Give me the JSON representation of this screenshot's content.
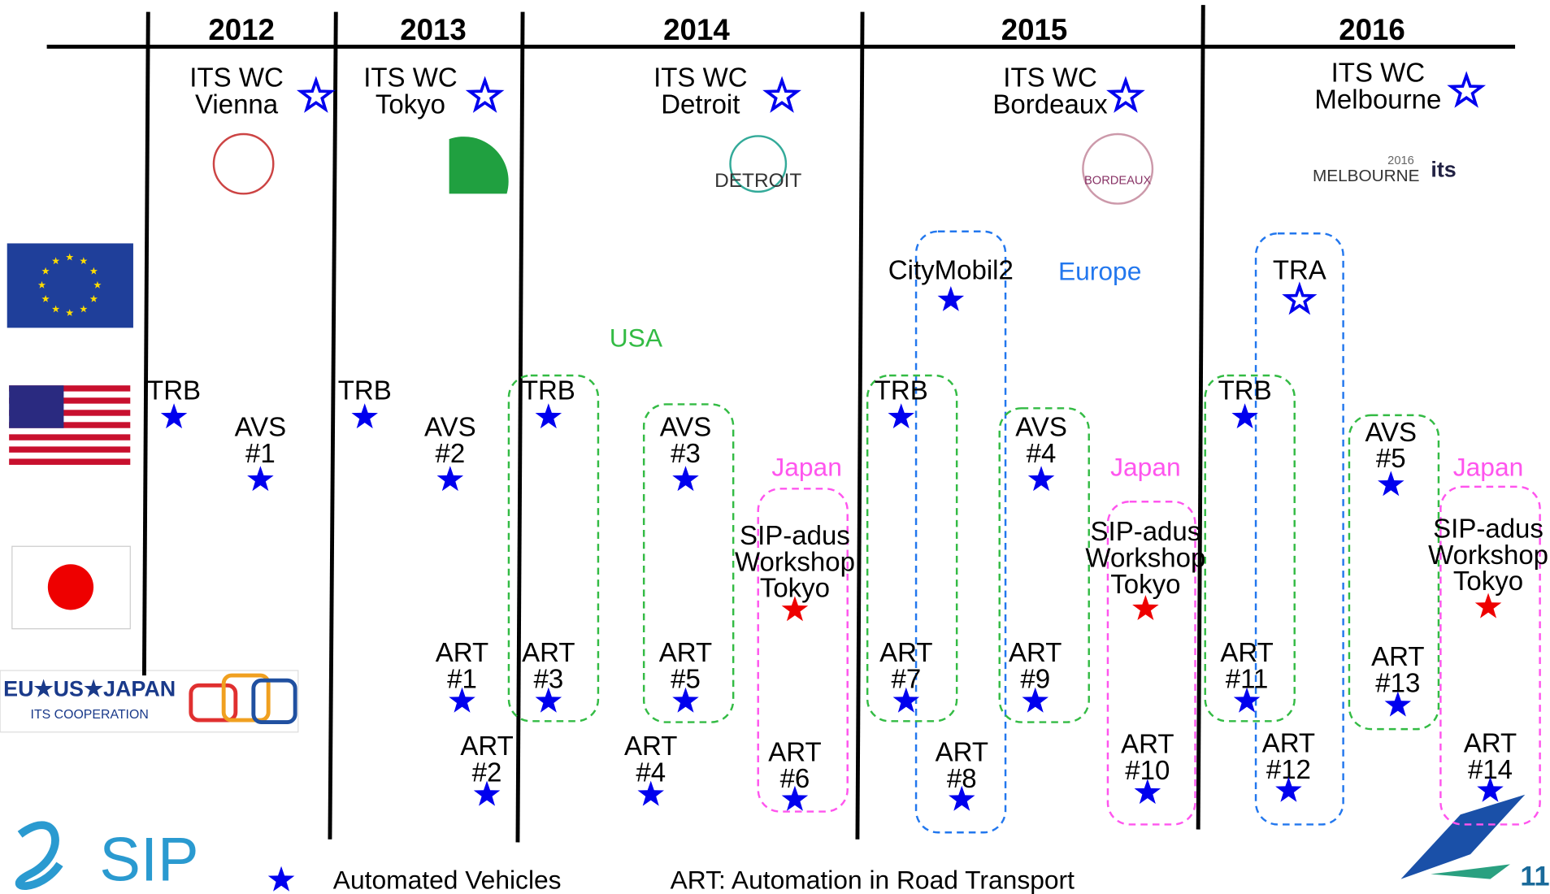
{
  "years": [
    "2012",
    "2013",
    "2014",
    "2015",
    "2016"
  ],
  "conferences": [
    {
      "label": [
        "ITS WC",
        "Vienna"
      ]
    },
    {
      "label": [
        "ITS WC",
        "Tokyo"
      ]
    },
    {
      "label": [
        "ITS WC",
        "Detroit"
      ]
    },
    {
      "label": [
        "ITS WC",
        "Bordeaux"
      ]
    },
    {
      "label": [
        "ITS WC",
        "Melbourne"
      ]
    }
  ],
  "logo_texts": {
    "detroit": "DETROIT",
    "bordeaux": "BORDEAUX",
    "melbourne": "MELBOURNE",
    "melbourne_year": "2016",
    "its": "its"
  },
  "regions": [
    {
      "label": "USA",
      "color": "#33bb44"
    },
    {
      "label": "Europe",
      "color": "#2277ee"
    },
    {
      "label": "Japan",
      "color": "#ff55ee"
    },
    {
      "label": "Japan",
      "color": "#ff55ee"
    },
    {
      "label": "Japan",
      "color": "#ff55ee"
    }
  ],
  "events": [
    {
      "label": [
        "TRB"
      ],
      "star_color": "#0000ee"
    },
    {
      "label": [
        "AVS",
        "#1"
      ],
      "star_color": "#0000ee"
    },
    {
      "label": [
        "TRB"
      ],
      "star_color": "#0000ee"
    },
    {
      "label": [
        "AVS",
        "#2"
      ],
      "star_color": "#0000ee"
    },
    {
      "label": [
        "ART",
        "#1"
      ],
      "star_color": "#0000ee"
    },
    {
      "label": [
        "ART",
        "#2"
      ],
      "star_color": "#0000ee"
    },
    {
      "label": [
        "TRB"
      ],
      "star_color": "#0000ee"
    },
    {
      "label": [
        "ART",
        "#3"
      ],
      "star_color": "#0000ee"
    },
    {
      "label": [
        "AVS",
        "#3"
      ],
      "star_color": "#0000ee"
    },
    {
      "label": [
        "ART",
        "#5"
      ],
      "star_color": "#0000ee"
    },
    {
      "label": [
        "ART",
        "#4"
      ],
      "star_color": "#0000ee",
      "label_color": "#c8b48c"
    },
    {
      "label": [
        "SIP-adus",
        "Workshop",
        "Tokyo"
      ],
      "star_color": "#ee0000"
    },
    {
      "label": [
        "ART",
        "#6"
      ],
      "star_color": "#0000ee"
    },
    {
      "label": [
        "CityMobil2"
      ],
      "star_color": "#0000ee"
    },
    {
      "label": [
        "TRB"
      ],
      "star_color": "#0000ee"
    },
    {
      "label": [
        "ART",
        "#7"
      ],
      "star_color": "#0000ee"
    },
    {
      "label": [
        "ART",
        "#8"
      ],
      "star_color": "#0000ee"
    },
    {
      "label": [
        "AVS",
        "#4"
      ],
      "star_color": "#0000ee"
    },
    {
      "label": [
        "ART",
        "#9"
      ],
      "star_color": "#0000ee"
    },
    {
      "label": [
        "SIP-adus",
        "Workshop",
        "Tokyo"
      ],
      "star_color": "#ee0000"
    },
    {
      "label": [
        "ART",
        "#10"
      ],
      "star_color": "#0000ee"
    },
    {
      "label": [
        "TRA"
      ],
      "star_color": "none"
    },
    {
      "label": [
        "TRB"
      ],
      "star_color": "#0000ee"
    },
    {
      "label": [
        "ART",
        "#11"
      ],
      "star_color": "#0000ee"
    },
    {
      "label": [
        "ART",
        "#12"
      ],
      "star_color": "#0000ee"
    },
    {
      "label": [
        "AVS",
        "#5"
      ],
      "star_color": "#0000ee"
    },
    {
      "label": [
        "ART",
        "#13"
      ],
      "star_color": "#0000ee"
    },
    {
      "label": [
        "SIP-adus",
        "Workshop",
        "Tokyo"
      ],
      "star_color": "#ee0000"
    },
    {
      "label": [
        "ART",
        "#14"
      ],
      "star_color": "#0000ee"
    }
  ],
  "cooperation_logo": {
    "title": "EU★US★JAPAN",
    "subtitle": "ITS COOPERATION"
  },
  "sip_logo": "SIP",
  "legend": {
    "star": "Automated Vehicles",
    "art": "ART: Automation in Road Transport"
  },
  "page_number": "11"
}
